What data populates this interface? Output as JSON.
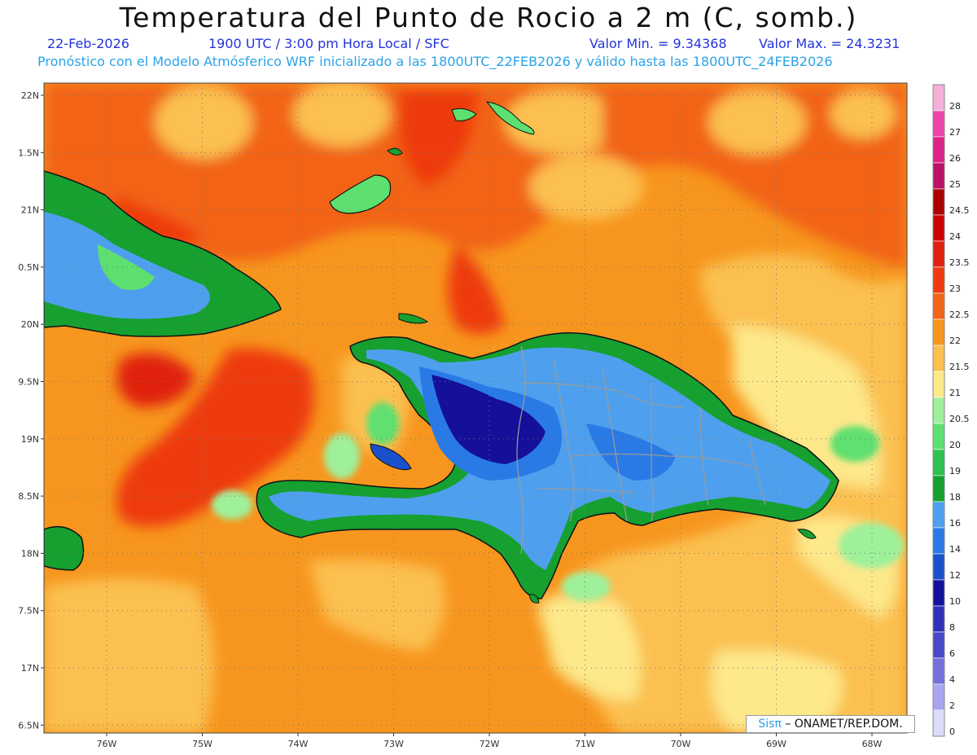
{
  "title": "Temperatura del Punto de Rocio a 2 m (C, somb.)",
  "header": {
    "date": "22-Feb-2026",
    "time": "1900 UTC / 3:00 pm Hora Local / SFC",
    "min_label": "Valor Min. = 9.34368",
    "max_label": "Valor Max. = 24.3231",
    "subtitle": "Pronóstico con el Modelo Atmósferico WRF inicializado a las 1800UTC_22FEB2026 y válido hasta las  1800UTC_24FEB2026"
  },
  "lat_labels": [
    "22N",
    "1.5N",
    "21N",
    "0.5N",
    "20N",
    "9.5N",
    "19N",
    "8.5N",
    "18N",
    "7.5N",
    "17N",
    "6.5N"
  ],
  "lon_labels": [
    "76W",
    "75W",
    "74W",
    "73W",
    "72W",
    "71W",
    "70W",
    "69W",
    "68W"
  ],
  "colorbar": {
    "labels": [
      "28",
      "27",
      "26",
      "25",
      "24.5",
      "24",
      "23.5",
      "23",
      "22.5",
      "22",
      "21.5",
      "21",
      "20.5",
      "20",
      "19",
      "18",
      "16",
      "14",
      "12",
      "10",
      "8",
      "6",
      "4",
      "2",
      "0"
    ],
    "colors": [
      "#f5b0d8",
      "#ee44aa",
      "#dd2288",
      "#bb1166",
      "#aa0000",
      "#cc0000",
      "#e02010",
      "#ee3a10",
      "#f26418",
      "#f7961e",
      "#fbc050",
      "#fde88a",
      "#9ff09a",
      "#5ee070",
      "#2ec050",
      "#16a030",
      "#4ea0ee",
      "#2a7ae6",
      "#1a50cc",
      "#14109a",
      "#3030b8",
      "#4a48c8",
      "#7470dc",
      "#a8a6ee",
      "#dcdcf8"
    ]
  },
  "credit": {
    "brand": "Sisπ",
    "text": "– ONAMET/REP.DOM."
  }
}
